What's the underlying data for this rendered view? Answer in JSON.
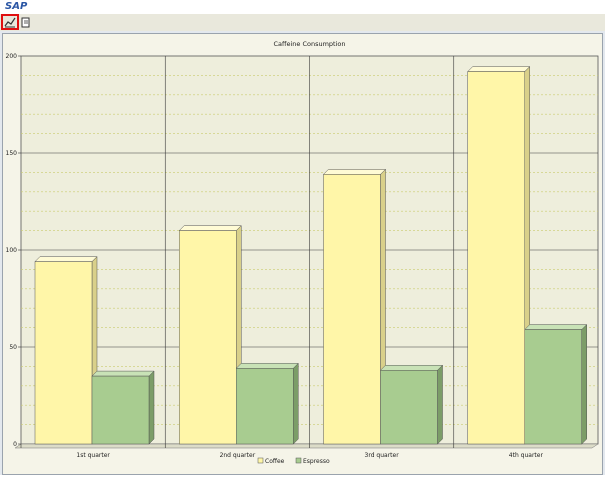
{
  "app": {
    "title": "SAP"
  },
  "toolbar": {
    "buttons": [
      {
        "name": "chart-type-button",
        "icon": "chart-edit-icon",
        "glyph": "✎"
      },
      {
        "name": "print-button",
        "icon": "print-icon",
        "glyph": "🖶"
      }
    ]
  },
  "colors": {
    "coffee": "#fff6a8",
    "coffee_side": "#d9d08a",
    "coffee_top": "#fffbd5",
    "espresso": "#a8cc90",
    "espresso_side": "#7c9d68",
    "espresso_top": "#c8e2b6",
    "plot_bg": "#eeeedc",
    "gridline_major": "#3a3a3a",
    "gridline_minor": "#c9cc6e"
  },
  "chart_data": {
    "type": "bar",
    "title": "Caffeine Consumption",
    "categories": [
      "1st quarter",
      "2nd quarter",
      "3rd quarter",
      "4th quarter"
    ],
    "series": [
      {
        "name": "Coffee",
        "values": [
          94,
          110,
          139,
          192
        ]
      },
      {
        "name": "Espresso",
        "values": [
          35,
          39,
          38,
          59
        ]
      }
    ],
    "ylim": [
      0,
      200
    ],
    "yticks": [
      0,
      50,
      100,
      150,
      200
    ],
    "grid": true,
    "legend": "bottom",
    "xlabel": "",
    "ylabel": ""
  }
}
